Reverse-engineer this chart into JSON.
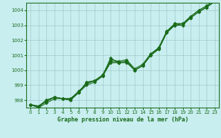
{
  "title": "Graphe pression niveau de la mer (hPa)",
  "background_color": "#c8eef0",
  "grid_color": "#a0c8c8",
  "line_color": "#1a6b1a",
  "marker_color": "#1a6b1a",
  "xlim": [
    -0.5,
    23.5
  ],
  "ylim": [
    997.5,
    1004.5
  ],
  "yticks": [
    998,
    999,
    1000,
    1001,
    1002,
    1003,
    1004
  ],
  "xticks": [
    0,
    1,
    2,
    3,
    4,
    5,
    6,
    7,
    8,
    9,
    10,
    11,
    12,
    13,
    14,
    15,
    16,
    17,
    18,
    19,
    20,
    21,
    22,
    23
  ],
  "series": [
    [
      997.7,
      997.6,
      998.0,
      998.2,
      998.1,
      998.1,
      998.5,
      999.2,
      999.3,
      999.6,
      1000.8,
      1000.5,
      1000.6,
      1000.0,
      1000.3,
      1001.0,
      1001.5,
      1002.6,
      1003.1,
      1003.1,
      1003.6,
      1004.0,
      1004.3,
      1004.7
    ],
    [
      997.7,
      997.5,
      997.8,
      998.1,
      998.1,
      998.0,
      998.5,
      999.0,
      999.2,
      999.6,
      1000.5,
      1000.5,
      1000.6,
      1000.0,
      1000.3,
      1001.0,
      1001.4,
      1002.5,
      1003.0,
      1003.1,
      1003.5,
      1003.9,
      1004.2,
      1004.6
    ],
    [
      997.7,
      997.5,
      998.0,
      998.2,
      998.1,
      998.1,
      998.6,
      999.1,
      999.3,
      999.7,
      1000.7,
      1000.6,
      1000.7,
      1000.1,
      1000.4,
      1001.1,
      1001.5,
      1002.5,
      1003.1,
      1003.1,
      1003.5,
      1003.9,
      1004.2,
      1004.6
    ],
    [
      997.7,
      997.6,
      997.9,
      998.2,
      998.1,
      998.0,
      998.5,
      999.1,
      999.3,
      999.6,
      1000.6,
      1000.5,
      1000.5,
      1000.0,
      1000.3,
      1001.0,
      1001.4,
      1002.5,
      1003.0,
      1003.0,
      1003.5,
      1003.9,
      1004.2,
      1004.6
    ]
  ],
  "title_fontsize": 6.0,
  "tick_fontsize": 5.0
}
